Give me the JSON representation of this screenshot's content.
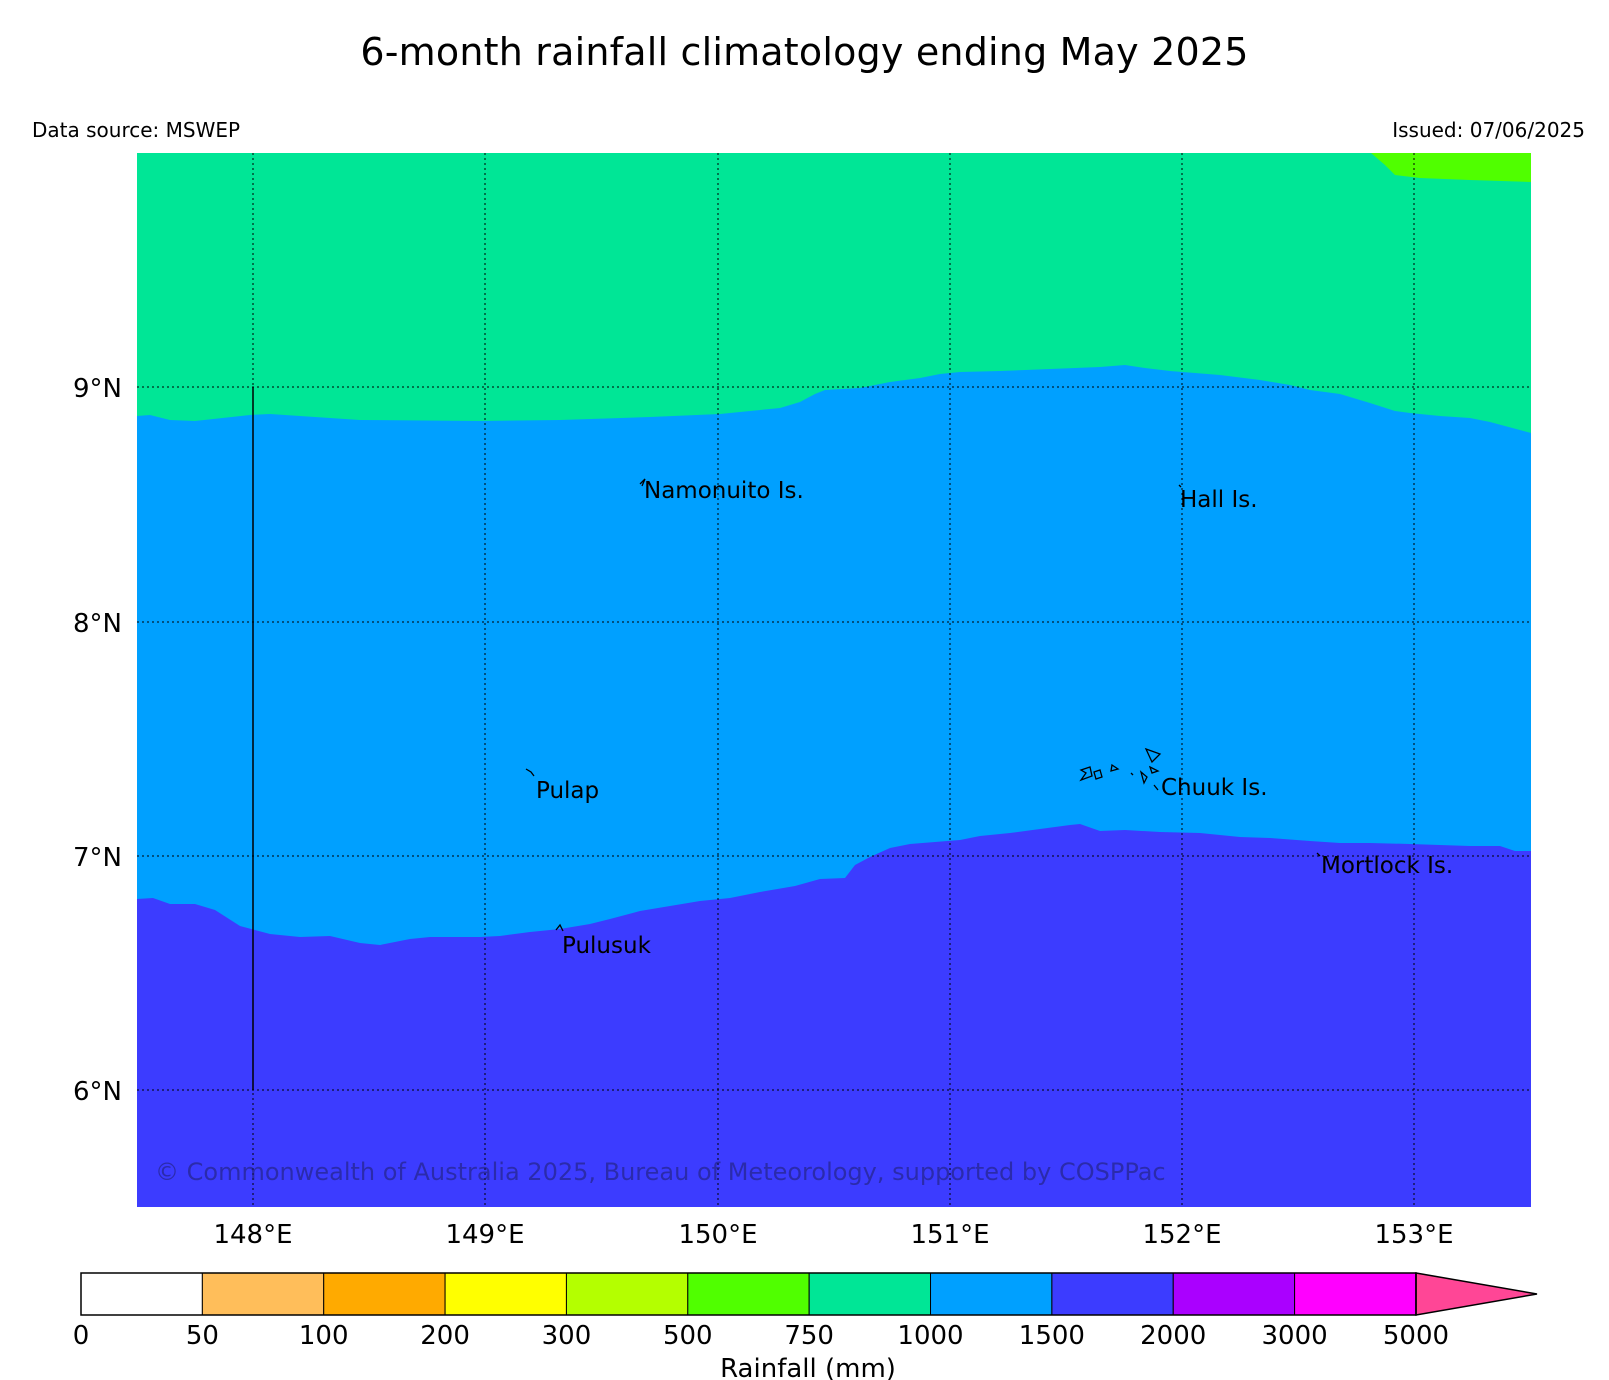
{
  "title": "6-month rainfall climatology ending May 2025",
  "data_source": "Data source: MSWEP",
  "issued": "Issued: 07/06/2025",
  "copyright": "© Commonwealth of Australia 2025, Bureau of Meteorology, supported by COSPPac",
  "axes": {
    "lon_ticks": [
      "148°E",
      "149°E",
      "150°E",
      "151°E",
      "152°E",
      "153°E"
    ],
    "lat_ticks": [
      "9°N",
      "8°N",
      "7°N",
      "6°N"
    ],
    "extent": {
      "lon_min": 147.5,
      "lon_max": 153.5,
      "lat_min": 5.5,
      "lat_max": 10.0
    }
  },
  "places": [
    {
      "name": "Namonuito Is.",
      "lon": 149.67,
      "lat": 8.58
    },
    {
      "name": "Hall Is.",
      "lon": 151.97,
      "lat": 8.55
    },
    {
      "name": "Pulap",
      "lon": 149.21,
      "lat": 7.3
    },
    {
      "name": "Chuuk Is.",
      "lon": 151.88,
      "lat": 7.3
    },
    {
      "name": "Mortlock Is.",
      "lon": 152.6,
      "lat": 6.97
    },
    {
      "name": "Pulusuk",
      "lon": 149.33,
      "lat": 6.63
    }
  ],
  "zones": [
    {
      "range": "750-1000",
      "color": "#00e696"
    },
    {
      "range": "1000-1500",
      "color": "#00a0ff"
    },
    {
      "range": "1500-2000",
      "color": "#3c3cff"
    },
    {
      "range": "500-750",
      "color": "#50ff00"
    }
  ],
  "colorbar": {
    "label": "Rainfall (mm)",
    "ticks": [
      "0",
      "50",
      "100",
      "200",
      "300",
      "500",
      "750",
      "1000",
      "1500",
      "2000",
      "3000",
      "5000"
    ],
    "colors": [
      "#ffffff",
      "#ffbe5a",
      "#ffaa00",
      "#ffff00",
      "#b4ff00",
      "#50ff00",
      "#00e696",
      "#00a0ff",
      "#3c3cff",
      "#aa00ff",
      "#ff00ff"
    ],
    "extend_color": "#ff4696"
  }
}
